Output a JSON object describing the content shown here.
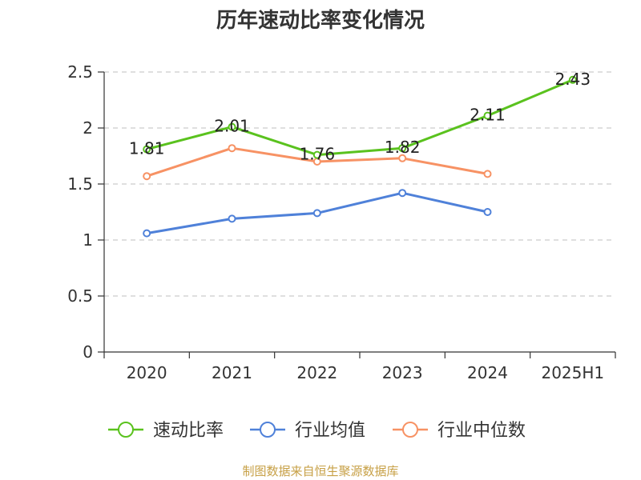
{
  "chart_data": {
    "type": "line",
    "title": "历年速动比率变化情况",
    "categories": [
      "2020",
      "2021",
      "2022",
      "2023",
      "2024",
      "2025H1"
    ],
    "ylim": [
      0,
      2.5
    ],
    "yticks": [
      "0",
      "0.5",
      "1",
      "1.5",
      "2",
      "2.5"
    ],
    "grid": true,
    "legend_position": "bottom",
    "series": [
      {
        "name": "速动比率",
        "color": "#5ac21e",
        "values": [
          1.81,
          2.01,
          1.76,
          1.82,
          2.11,
          2.43
        ],
        "labels": [
          "1.81",
          "2.01",
          "1.76",
          "1.82",
          "2.11",
          "2.43"
        ]
      },
      {
        "name": "行业均值",
        "color": "#4f81d9",
        "values": [
          1.06,
          1.19,
          1.24,
          1.42,
          1.25,
          null
        ]
      },
      {
        "name": "行业中位数",
        "color": "#f79264",
        "values": [
          1.57,
          1.82,
          1.7,
          1.73,
          1.59,
          null
        ]
      }
    ]
  },
  "source_text": "制图数据来自恒生聚源数据库"
}
